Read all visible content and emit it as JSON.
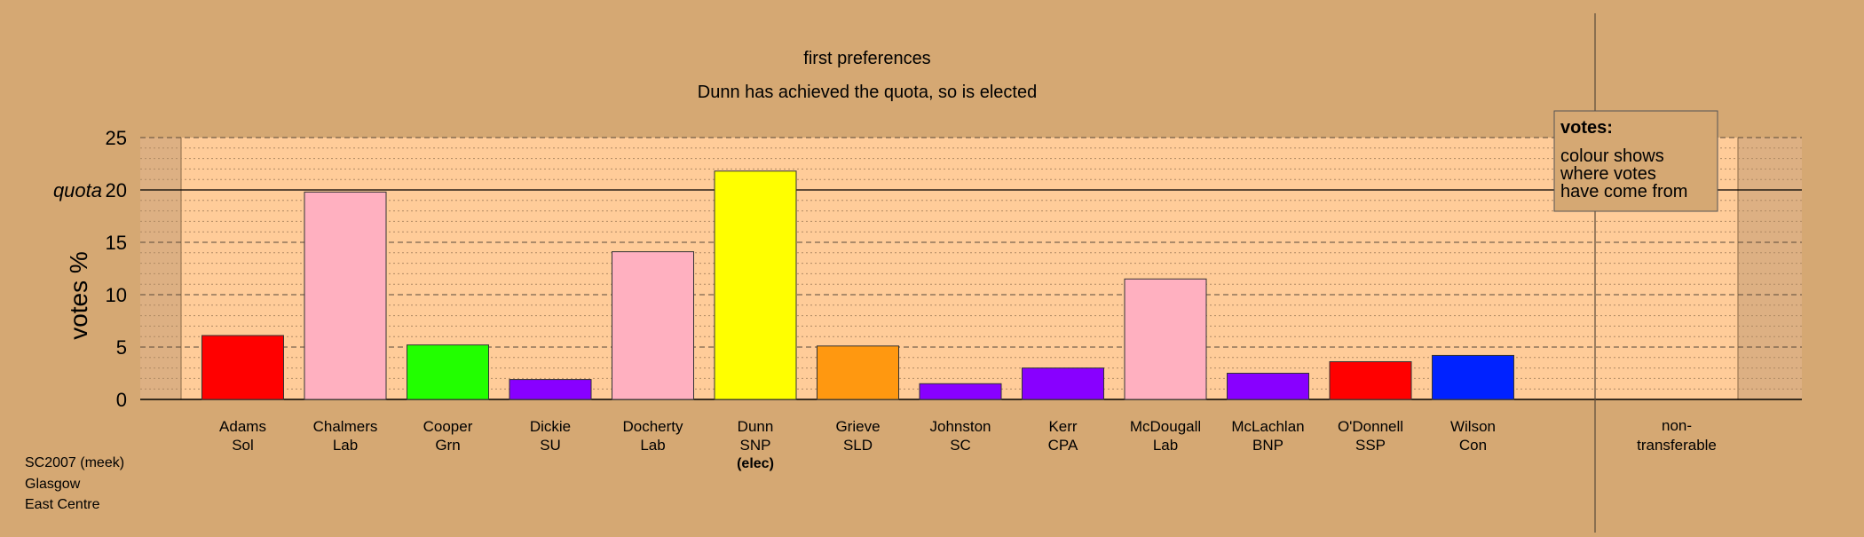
{
  "chart_data": {
    "type": "bar",
    "title": "first preferences",
    "subtitle": "Dunn has achieved the quota, so is elected",
    "ylabel": "votes %",
    "quota_label": "quota",
    "quota": 20,
    "ylim": [
      0,
      25
    ],
    "yticks": [
      0,
      5,
      10,
      15,
      20,
      25
    ],
    "grid": "dashed major every 5, dotted minor every 1",
    "categories": [
      {
        "name": "Adams",
        "party": "Sol",
        "value": 6.1,
        "color": "#ff0000",
        "note": ""
      },
      {
        "name": "Chalmers",
        "party": "Lab",
        "value": 19.8,
        "color": "#ffb0c0",
        "note": ""
      },
      {
        "name": "Cooper",
        "party": "Grn",
        "value": 5.2,
        "color": "#22ff00",
        "note": ""
      },
      {
        "name": "Dickie",
        "party": "SU",
        "value": 1.9,
        "color": "#8800ff",
        "note": ""
      },
      {
        "name": "Docherty",
        "party": "Lab",
        "value": 14.1,
        "color": "#ffb0c0",
        "note": ""
      },
      {
        "name": "Dunn",
        "party": "SNP",
        "value": 21.8,
        "color": "#ffff00",
        "note": "(elec)"
      },
      {
        "name": "Grieve",
        "party": "SLD",
        "value": 5.1,
        "color": "#ff9810",
        "note": ""
      },
      {
        "name": "Johnston",
        "party": "SC",
        "value": 1.5,
        "color": "#8800ff",
        "note": ""
      },
      {
        "name": "Kerr",
        "party": "CPA",
        "value": 3.0,
        "color": "#8800ff",
        "note": ""
      },
      {
        "name": "McDougall",
        "party": "Lab",
        "value": 11.5,
        "color": "#ffb0c0",
        "note": ""
      },
      {
        "name": "McLachlan",
        "party": "BNP",
        "value": 2.5,
        "color": "#8800ff",
        "note": ""
      },
      {
        "name": "O'Donnell",
        "party": "SSP",
        "value": 3.6,
        "color": "#ff0000",
        "note": ""
      },
      {
        "name": "Wilson",
        "party": "Con",
        "value": 4.2,
        "color": "#0022ff",
        "note": ""
      }
    ],
    "nontransferable": {
      "label_line1": "non-",
      "label_line2": "transferable",
      "value": 0
    },
    "legend": {
      "placement": "top-right",
      "title": "votes:",
      "lines": [
        "colour shows",
        "where votes",
        "have come from"
      ]
    }
  },
  "footer": {
    "line1": "SC2007 (meek)",
    "line2": "Glasgow",
    "line3": "East Centre"
  },
  "colors": {
    "background": "#d5a873",
    "plot_area": "#ffcc99",
    "side_band": "#ddb083"
  }
}
